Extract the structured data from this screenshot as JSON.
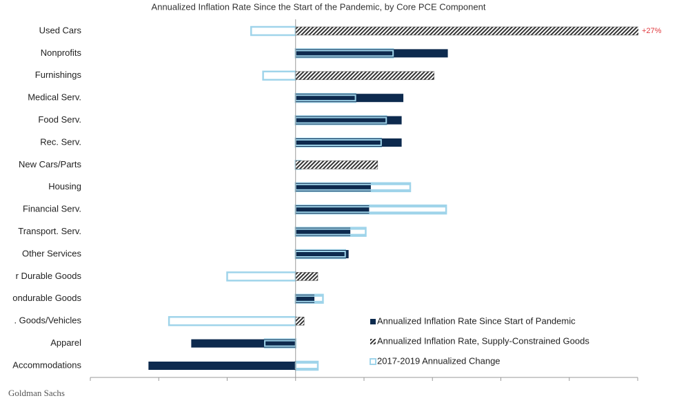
{
  "chart_data": {
    "type": "bar",
    "orientation": "horizontal",
    "title": "Annualized Inflation Rate Since the Start of the Pandemic, by Core PCE Component",
    "source": "Goldman Sachs",
    "categories": [
      "Used Cars",
      "Nonprofits",
      "Furnishings",
      "Medical Serv.",
      "Food Serv.",
      "Rec. Serv.",
      "New Cars/Parts",
      "Housing",
      "Financial Serv.",
      "Transport. Serv.",
      "Other Services",
      "r Durable Goods",
      "ondurable Goods",
      ". Goods/Vehicles",
      "Apparel",
      "Accommodations"
    ],
    "series": [
      {
        "name": "2017-2019  Annualized Change",
        "color": "#9fd4ea",
        "style": "outline",
        "values": [
          -1.3,
          2.85,
          -0.95,
          1.75,
          2.65,
          2.5,
          0.15,
          3.35,
          4.4,
          2.05,
          1.45,
          -2.0,
          0.8,
          -3.7,
          -0.9,
          0.65
        ]
      },
      {
        "name": "Annualized Inflation Rate Since Start of Pandemic",
        "color": "#0d2a4e",
        "style": "solid",
        "values": [
          null,
          4.45,
          null,
          3.15,
          3.1,
          3.1,
          null,
          2.2,
          2.15,
          1.6,
          1.55,
          null,
          0.55,
          null,
          -3.05,
          -4.3
        ]
      },
      {
        "name": "Annualized Inflation Rate, Supply-Constrained Goods",
        "color": "#333333",
        "style": "hatched",
        "values": [
          27,
          null,
          4.05,
          null,
          null,
          null,
          2.4,
          null,
          null,
          null,
          null,
          0.65,
          null,
          0.25,
          null,
          null
        ],
        "value_labels": [
          "+27%",
          null,
          null,
          null,
          null,
          null,
          null,
          null,
          null,
          null,
          null,
          null,
          null,
          null,
          null,
          null
        ]
      }
    ],
    "legend_order": [
      1,
      2,
      0
    ],
    "legend": "lower right",
    "xlim": [
      -6,
      10
    ],
    "xticks": [
      -6,
      -4,
      -2,
      0,
      2,
      4,
      6,
      8,
      10
    ]
  }
}
